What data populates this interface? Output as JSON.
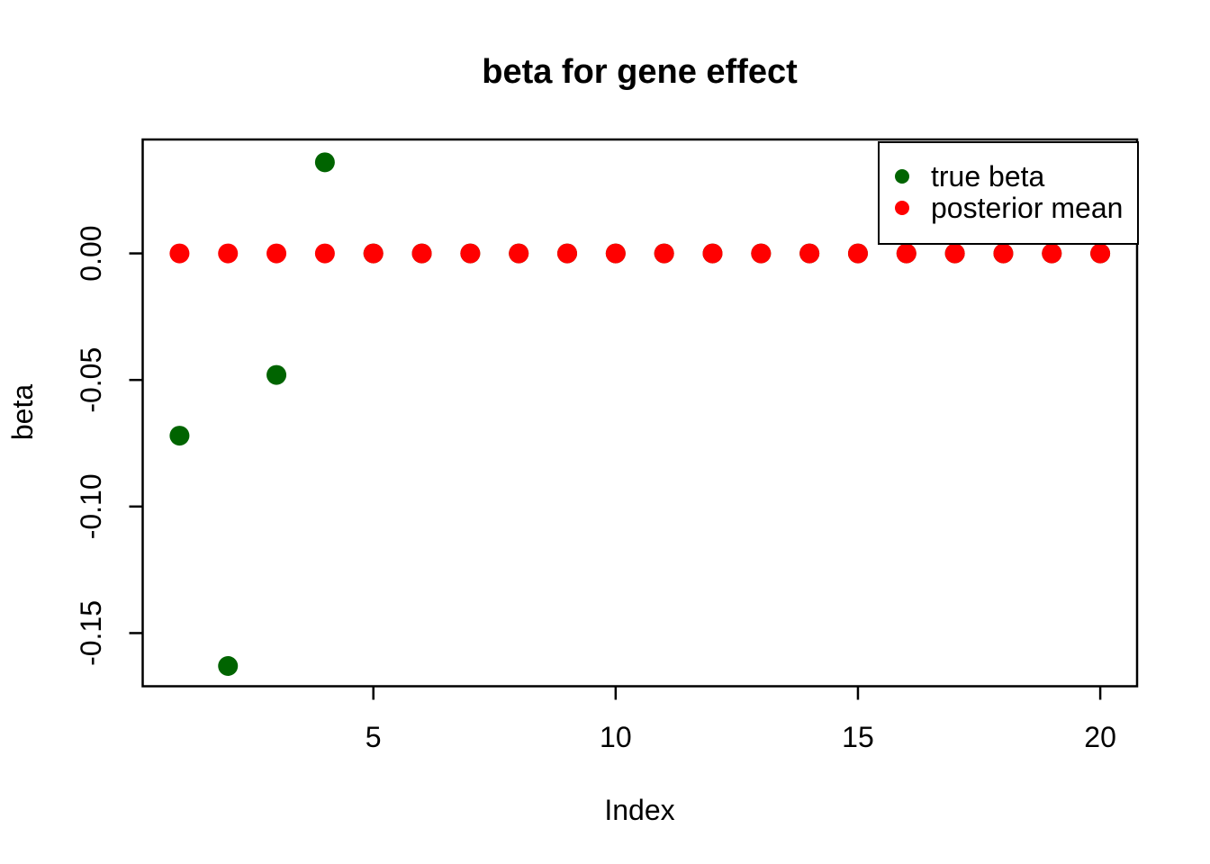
{
  "chart_data": {
    "type": "scatter",
    "title": "beta for gene effect",
    "xlabel": "Index",
    "ylabel": "beta",
    "x": [
      1,
      2,
      3,
      4,
      5,
      6,
      7,
      8,
      9,
      10,
      11,
      12,
      13,
      14,
      15,
      16,
      17,
      18,
      19,
      20
    ],
    "series": [
      {
        "name": "true beta",
        "color": "#006400",
        "values": [
          -0.072,
          -0.163,
          -0.048,
          0.036,
          0,
          0,
          0,
          0,
          0,
          0,
          0,
          0,
          0,
          0,
          0,
          0,
          0,
          0,
          0,
          0
        ]
      },
      {
        "name": "posterior mean",
        "color": "#ff0000",
        "values": [
          0,
          0,
          0,
          0,
          0,
          0,
          0,
          0,
          0,
          0,
          0,
          0,
          0,
          0,
          0,
          0,
          0,
          0,
          0,
          0
        ]
      }
    ],
    "xticks": [
      5,
      10,
      15,
      20
    ],
    "yticks": [
      {
        "value": 0.0,
        "label": "0.00"
      },
      {
        "value": -0.05,
        "label": "-0.05"
      },
      {
        "value": -0.1,
        "label": "-0.10"
      },
      {
        "value": -0.15,
        "label": "-0.15"
      }
    ],
    "xlim": [
      0.24,
      20.76
    ],
    "ylim": [
      -0.171,
      0.045
    ],
    "grid": false,
    "background": "#ffffff",
    "axis_color": "#000000",
    "legend": {
      "position": "topright",
      "entries": [
        {
          "label": "true beta",
          "color": "#006400"
        },
        {
          "label": "posterior mean",
          "color": "#ff0000"
        }
      ]
    }
  }
}
